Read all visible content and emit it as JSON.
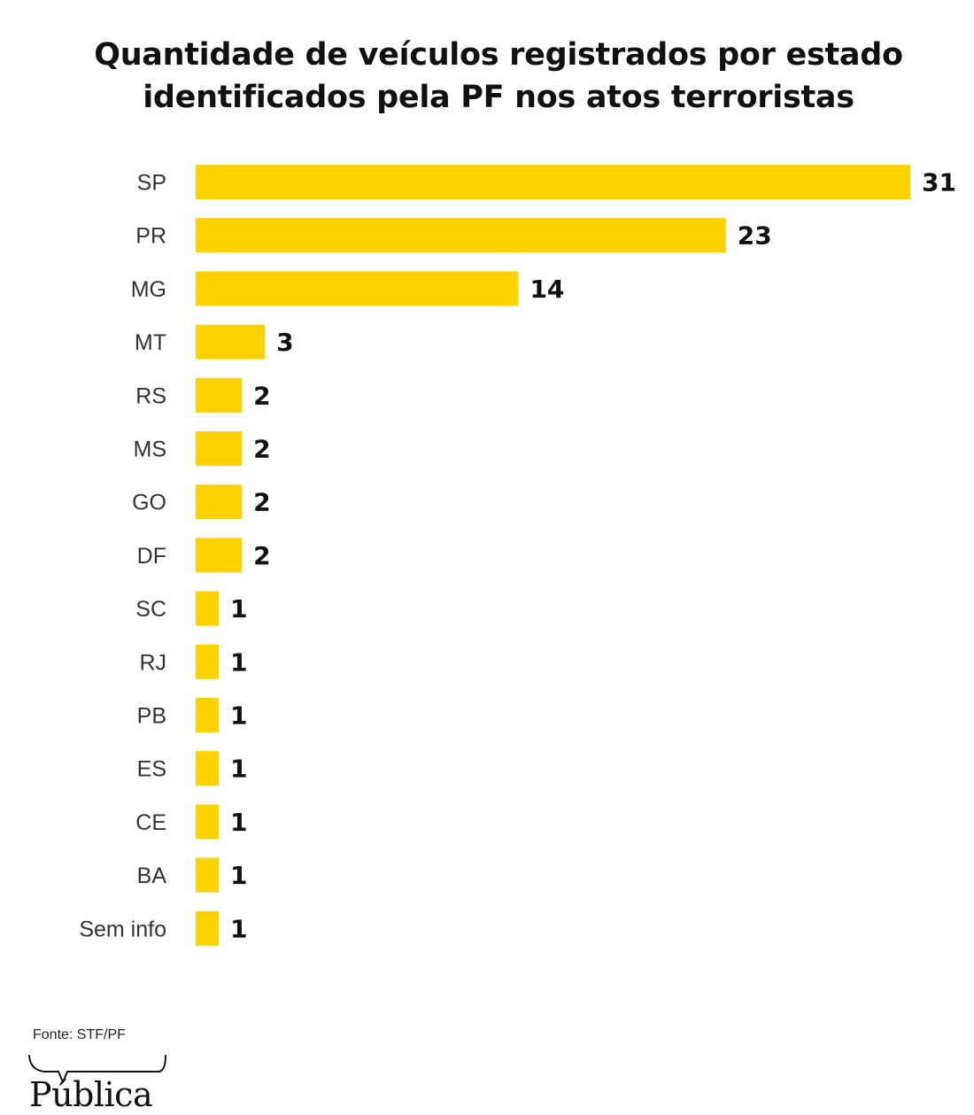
{
  "chart_data": {
    "type": "bar",
    "orientation": "horizontal",
    "title": "Quantidade de veículos registrados por estado identificados pela PF nos atos terroristas",
    "title_lines": [
      "Quantidade de veículos registrados por estado",
      "identificados pela PF nos atos terroristas"
    ],
    "categories": [
      "SP",
      "PR",
      "MG",
      "MT",
      "RS",
      "MS",
      "GO",
      "DF",
      "SC",
      "RJ",
      "PB",
      "ES",
      "CE",
      "BA",
      "Sem info"
    ],
    "values": [
      31,
      23,
      14,
      3,
      2,
      2,
      2,
      2,
      1,
      1,
      1,
      1,
      1,
      1,
      1
    ],
    "xlim": [
      0,
      31
    ],
    "xlabel": "",
    "ylabel": "",
    "grid": false,
    "legend": "none",
    "bar_color": "#FFD100"
  },
  "source": "Fonte: STF/PF",
  "logo": {
    "text": "Pública"
  }
}
